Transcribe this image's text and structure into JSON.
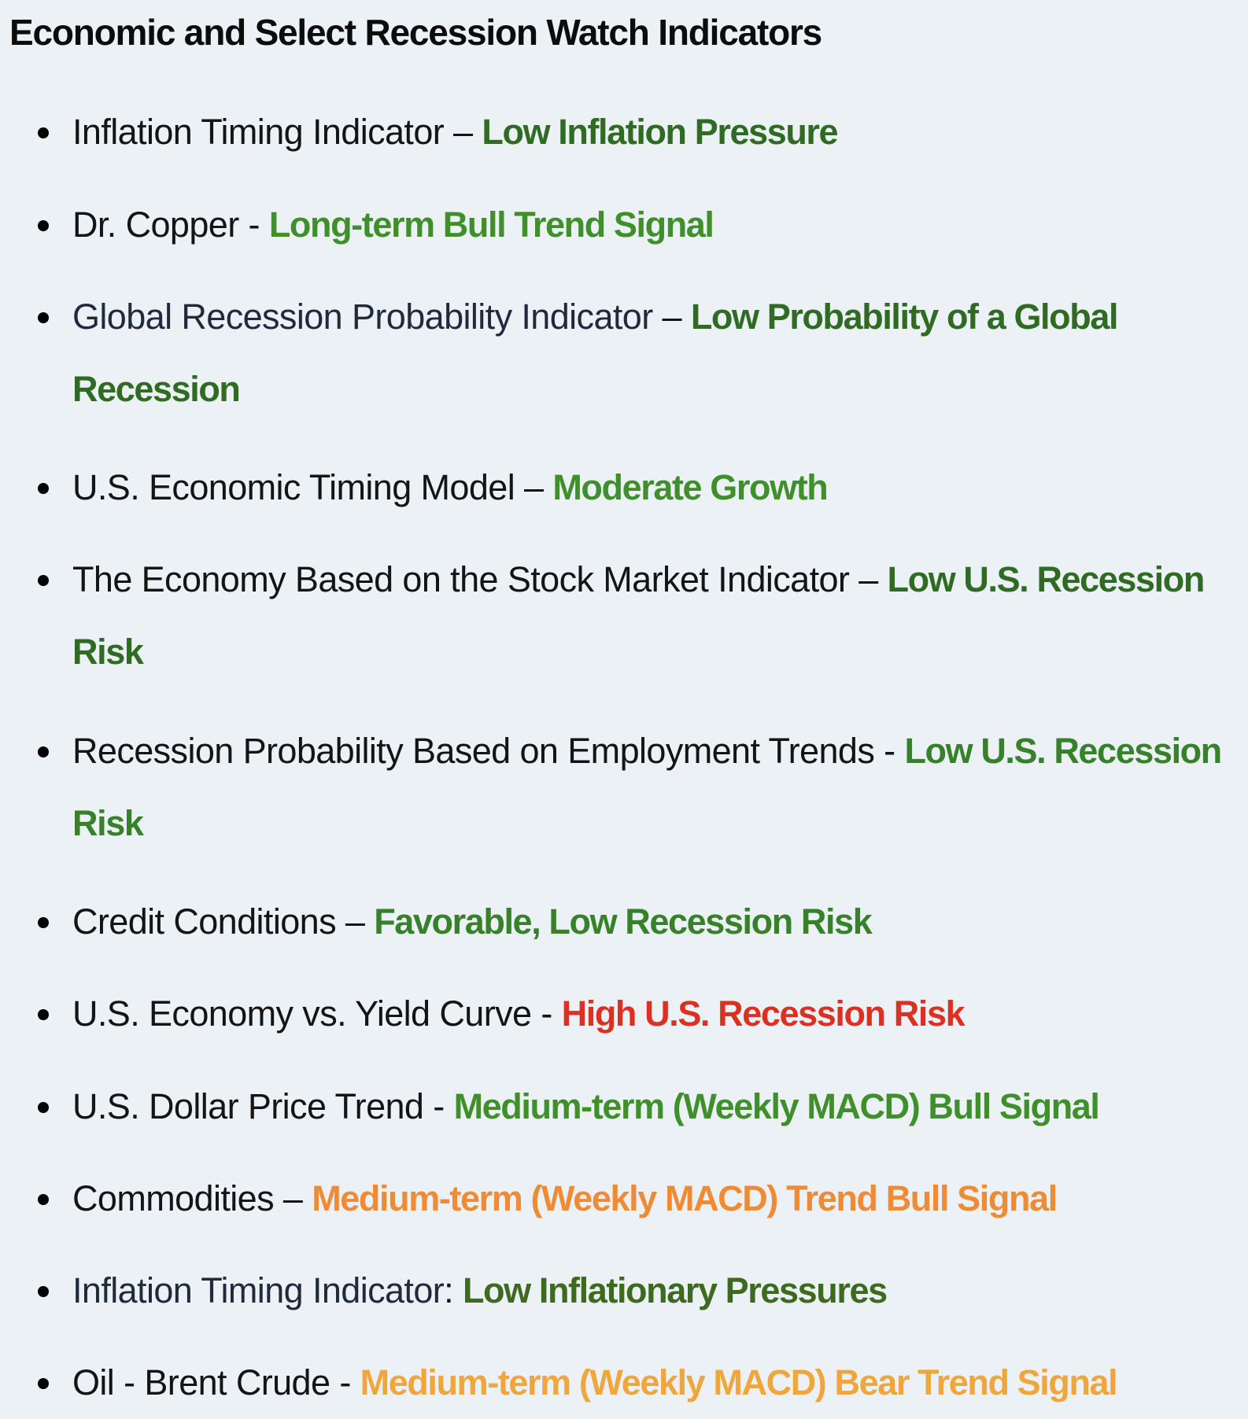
{
  "page": {
    "title": "Economic and Select Recession Watch Indicators"
  },
  "colors": {
    "background": "#ecf1f5",
    "green_dark": "#2f6b22",
    "green": "#3f8f2a",
    "red": "#dc3023",
    "orange": "#ef8b35",
    "amber": "#efa63d"
  },
  "indicators": [
    {
      "label": "Inflation Timing Indicator",
      "separator": " – ",
      "status": "Low Inflation Pressure"
    },
    {
      "label": "Dr. Copper",
      "separator": " - ",
      "status": "Long-term Bull Trend Signal"
    },
    {
      "label": "Global Recession Probability Indicator",
      "separator": " – ",
      "status": "Low Probability of a Global Recession"
    },
    {
      "label": "U.S. Economic Timing Model",
      "separator": " – ",
      "status": "Moderate Growth"
    },
    {
      "label": "The Economy Based on the Stock Market Indicator",
      "separator": " – ",
      "status": "Low U.S. Recession Risk"
    },
    {
      "label": "Recession Probability Based on Employment Trends",
      "separator": " - ",
      "status": "Low U.S. Recession Risk"
    },
    {
      "label": "Credit Conditions",
      "separator": " – ",
      "status": "Favorable, Low Recession Risk"
    },
    {
      "label": "U.S. Economy vs. Yield Curve",
      "separator": " - ",
      "status": "High U.S. Recession Risk"
    },
    {
      "label": "U.S. Dollar Price Trend",
      "separator": " - ",
      "status": "Medium-term (Weekly MACD) Bull Signal"
    },
    {
      "label": "Commodities",
      "separator": " – ",
      "status": "Medium-term (Weekly MACD) Trend Bull Signal"
    },
    {
      "label": "Inflation Timing Indicator",
      "separator": ": ",
      "status": "Low Inflationary Pressures"
    },
    {
      "label": "Oil - Brent Crude",
      "separator": " - ",
      "status": "Medium-term (Weekly MACD) Bear Trend Signal"
    }
  ]
}
